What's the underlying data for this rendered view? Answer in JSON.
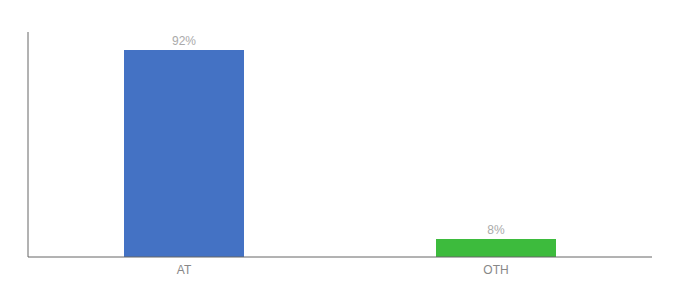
{
  "chart_data": {
    "type": "bar",
    "categories": [
      "AT",
      "OTH"
    ],
    "values": [
      92,
      8
    ],
    "value_labels": [
      "92%",
      "8%"
    ],
    "colors": [
      "#4472c4",
      "#3dbb3d"
    ],
    "ylim": [
      0,
      100
    ],
    "data_labels": true,
    "tick_labels": "x",
    "grid": false
  }
}
